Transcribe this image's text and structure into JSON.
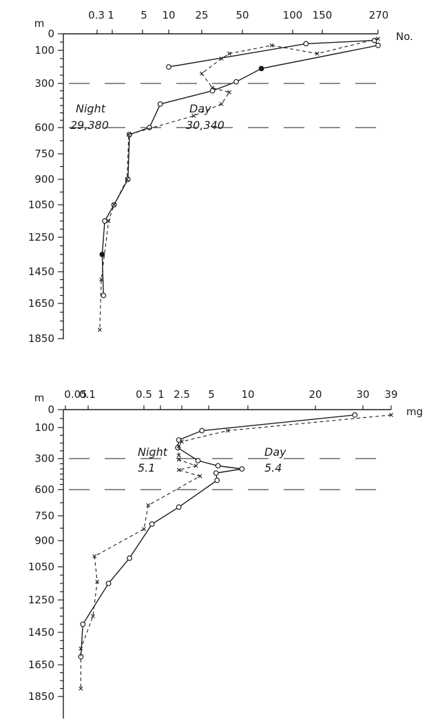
{
  "chart_data": [
    {
      "type": "line",
      "y_unit_label": "m",
      "x_unit_label": "No.",
      "x_scale": "log",
      "y_ticks": [
        "0",
        "100",
        "300",
        "600",
        "750",
        "900",
        "1050",
        "1250",
        "1450",
        "1650",
        "1850"
      ],
      "x_ticks": [
        "0.3",
        "1",
        "5",
        "10",
        "25",
        "50",
        "100",
        "150",
        "270"
      ],
      "reference_depths": [
        300,
        600
      ],
      "series": [
        {
          "key": "day",
          "name": "Day",
          "annotation": "30,340",
          "marker": "circle",
          "points": [
            [
              200,
              10
            ],
            [
              60,
              120
            ],
            [
              40,
              260
            ],
            [
              70,
              290
            ],
            [
              210,
              65
            ],
            [
              290,
              45
            ],
            [
              350,
              30
            ],
            [
              440,
              8
            ],
            [
              600,
              6
            ],
            [
              640,
              2.5
            ],
            [
              900,
              2.3
            ],
            [
              1050,
              1.1
            ],
            [
              1150,
              0.55
            ],
            [
              1350,
              0.45
            ],
            [
              1600,
              0.5
            ]
          ],
          "filled_points": [
            [
              210,
              65
            ],
            [
              1350,
              0.45
            ]
          ]
        },
        {
          "key": "night",
          "name": "Night",
          "annotation": "29,380",
          "marker": "x",
          "points": [
            [
              30,
              270
            ],
            [
              120,
              140
            ],
            [
              70,
              75
            ],
            [
              120,
              40
            ],
            [
              150,
              35
            ],
            [
              240,
              25
            ],
            [
              330,
              30
            ],
            [
              360,
              40
            ],
            [
              440,
              35
            ],
            [
              520,
              20
            ],
            [
              640,
              2.4
            ],
            [
              900,
              2.2
            ],
            [
              1050,
              1.1
            ],
            [
              1150,
              0.75
            ],
            [
              1500,
              0.42
            ],
            [
              1800,
              0.37
            ]
          ]
        }
      ]
    },
    {
      "type": "line",
      "y_unit_label": "m",
      "x_unit_label": "mg",
      "x_scale": "log",
      "y_ticks": [
        "0",
        "100",
        "300",
        "600",
        "750",
        "900",
        "1050",
        "1250",
        "1450",
        "1650",
        "1850"
      ],
      "x_ticks": [
        "0.05",
        "0.1",
        "0.5",
        "1",
        "2.5",
        "5",
        "10",
        "20",
        "30",
        "39"
      ],
      "reference_depths": [
        300,
        600
      ],
      "series": [
        {
          "key": "day",
          "name": "Day",
          "annotation": "5.4",
          "marker": "circle",
          "points": [
            [
              30,
              28
            ],
            [
              120,
              4.2
            ],
            [
              180,
              2.2
            ],
            [
              230,
              2.1
            ],
            [
              320,
              3.8
            ],
            [
              370,
              5.9
            ],
            [
              400,
              9.0
            ],
            [
              440,
              5.7
            ],
            [
              510,
              5.8
            ],
            [
              700,
              2.2
            ],
            [
              800,
              0.7
            ],
            [
              1000,
              0.33
            ],
            [
              1150,
              0.18
            ],
            [
              1400,
              0.085
            ],
            [
              1600,
              0.08
            ]
          ]
        },
        {
          "key": "night",
          "name": "Night",
          "annotation": "5.1",
          "marker": "x",
          "points": [
            [
              30,
              39
            ],
            [
              120,
              7.0
            ],
            [
              190,
              2.5
            ],
            [
              220,
              2.2
            ],
            [
              280,
              2.2
            ],
            [
              310,
              2.2
            ],
            [
              370,
              3.6
            ],
            [
              410,
              2.2
            ],
            [
              470,
              4.0
            ],
            [
              690,
              0.6
            ],
            [
              830,
              0.5
            ],
            [
              990,
              0.12
            ],
            [
              1140,
              0.13
            ],
            [
              1350,
              0.115
            ],
            [
              1550,
              0.08
            ],
            [
              1800,
              0.08
            ]
          ]
        }
      ]
    }
  ]
}
